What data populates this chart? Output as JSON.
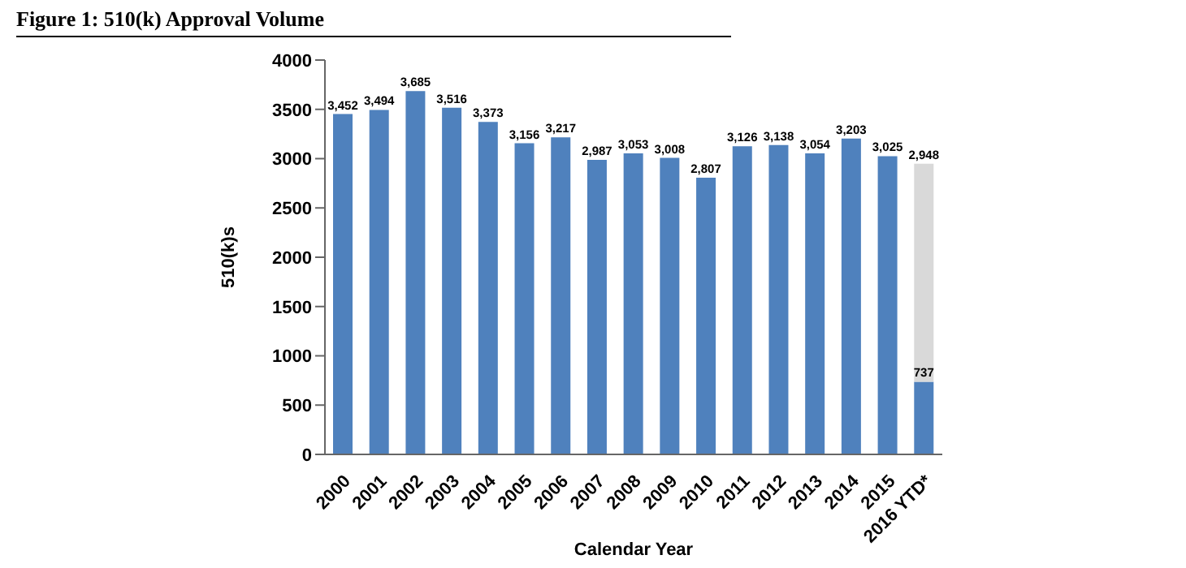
{
  "chart_data": {
    "type": "bar",
    "title": "Figure 1: 510(k) Approval Volume",
    "xlabel": "Calendar Year",
    "ylabel": "510(k)s",
    "categories": [
      "2000",
      "2001",
      "2002",
      "2003",
      "2004",
      "2005",
      "2006",
      "2007",
      "2008",
      "2009",
      "2010",
      "2011",
      "2012",
      "2013",
      "2014",
      "2015",
      "2016 YTD*"
    ],
    "stacked": true,
    "series": [
      {
        "color": "#4f81bd",
        "values": [
          3452,
          3494,
          3685,
          3516,
          3373,
          3156,
          3217,
          2987,
          3053,
          3008,
          2807,
          3126,
          3138,
          3054,
          3203,
          3025,
          737
        ],
        "value_labels": [
          "3,452",
          "3,494",
          "3,685",
          "3,516",
          "3,373",
          "3,156",
          "3,217",
          "2,987",
          "3,053",
          "3,008",
          "2,807",
          "3,126",
          "3,138",
          "3,054",
          "3,203",
          "3,025",
          "737"
        ]
      },
      {
        "color": "#d9d9d9",
        "values": [
          null,
          null,
          null,
          null,
          null,
          null,
          null,
          null,
          null,
          null,
          null,
          null,
          null,
          null,
          null,
          null,
          2211
        ]
      }
    ],
    "totals": [
      null,
      null,
      null,
      null,
      null,
      null,
      null,
      null,
      null,
      null,
      null,
      null,
      null,
      null,
      null,
      null,
      "2,948"
    ],
    "ylim": [
      0,
      4000
    ],
    "yticks": [
      0,
      500,
      1000,
      1500,
      2000,
      2500,
      3000,
      3500,
      4000
    ],
    "grid": false,
    "legend": false
  }
}
